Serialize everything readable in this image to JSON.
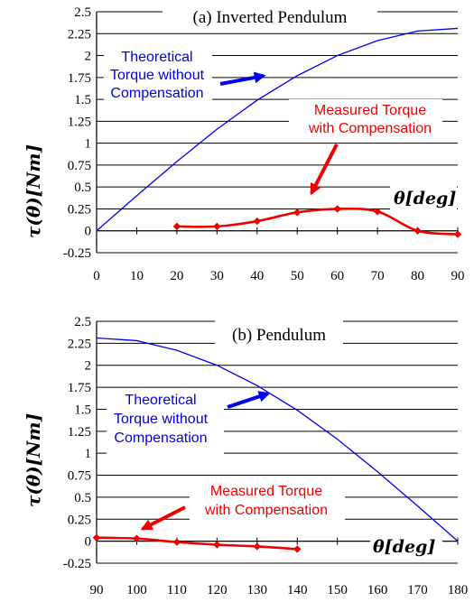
{
  "chart_data": [
    {
      "type": "line",
      "title": "(a) Inverted Pendulum",
      "ylabel": "τ(θ)[Nm]",
      "xlabel": "θ[deg]",
      "xlim": [
        0,
        90
      ],
      "ylim": [
        -0.25,
        2.5
      ],
      "x_ticks": [
        "0",
        "10",
        "20",
        "30",
        "40",
        "50",
        "60",
        "70",
        "80",
        "90"
      ],
      "y_ticks": [
        "-0.25",
        "0",
        "0.25",
        "0.5",
        "0.75",
        "1",
        "1.25",
        "1.5",
        "1.75",
        "2",
        "2.25",
        "2.5"
      ],
      "grid": true,
      "series": [
        {
          "color": "#0000ee",
          "marker": "none",
          "x": [
            0,
            10,
            20,
            30,
            40,
            50,
            60,
            70,
            80,
            90
          ],
          "y": [
            0,
            0.4,
            0.79,
            1.16,
            1.49,
            1.77,
            2.0,
            2.17,
            2.28,
            2.31
          ]
        },
        {
          "color": "#ee0000",
          "marker": "diamond",
          "x": [
            20,
            30,
            40,
            50,
            60,
            70,
            80,
            90
          ],
          "y": [
            0.05,
            0.05,
            0.11,
            0.21,
            0.25,
            0.22,
            0.0,
            -0.04
          ]
        }
      ],
      "annotations": [
        {
          "lines": [
            "Theoretical",
            "Torque without",
            "Compensation"
          ],
          "color": "#0000e0"
        },
        {
          "lines": [
            "Measured Torque",
            "with Compensation"
          ],
          "color": "#ee0000"
        }
      ]
    },
    {
      "type": "line",
      "title": "(b) Pendulum",
      "ylabel": "τ(θ)[Nm]",
      "xlabel": "θ[deg]",
      "xlim": [
        90,
        180
      ],
      "ylim": [
        -0.25,
        2.5
      ],
      "x_ticks": [
        "90",
        "100",
        "110",
        "120",
        "130",
        "140",
        "150",
        "160",
        "170",
        "180"
      ],
      "y_ticks": [
        "-0.25",
        "0",
        "0.25",
        "0.5",
        "0.75",
        "1",
        "1.25",
        "1.5",
        "1.75",
        "2",
        "2.25",
        "2.5"
      ],
      "grid": true,
      "series": [
        {
          "color": "#0000ee",
          "marker": "none",
          "x": [
            90,
            100,
            110,
            120,
            130,
            140,
            150,
            160,
            170,
            180
          ],
          "y": [
            2.31,
            2.28,
            2.17,
            2.0,
            1.77,
            1.49,
            1.16,
            0.79,
            0.4,
            0
          ]
        },
        {
          "color": "#ee0000",
          "marker": "diamond",
          "x": [
            90,
            100,
            110,
            120,
            130,
            140
          ],
          "y": [
            0.04,
            0.03,
            -0.01,
            -0.04,
            -0.06,
            -0.09
          ]
        }
      ],
      "annotations": [
        {
          "lines": [
            "Theoretical",
            "Torque without",
            "Compensation"
          ],
          "color": "#0000e0"
        },
        {
          "lines": [
            "Measured Torque",
            "with Compensation"
          ],
          "color": "#ee0000"
        }
      ]
    }
  ]
}
